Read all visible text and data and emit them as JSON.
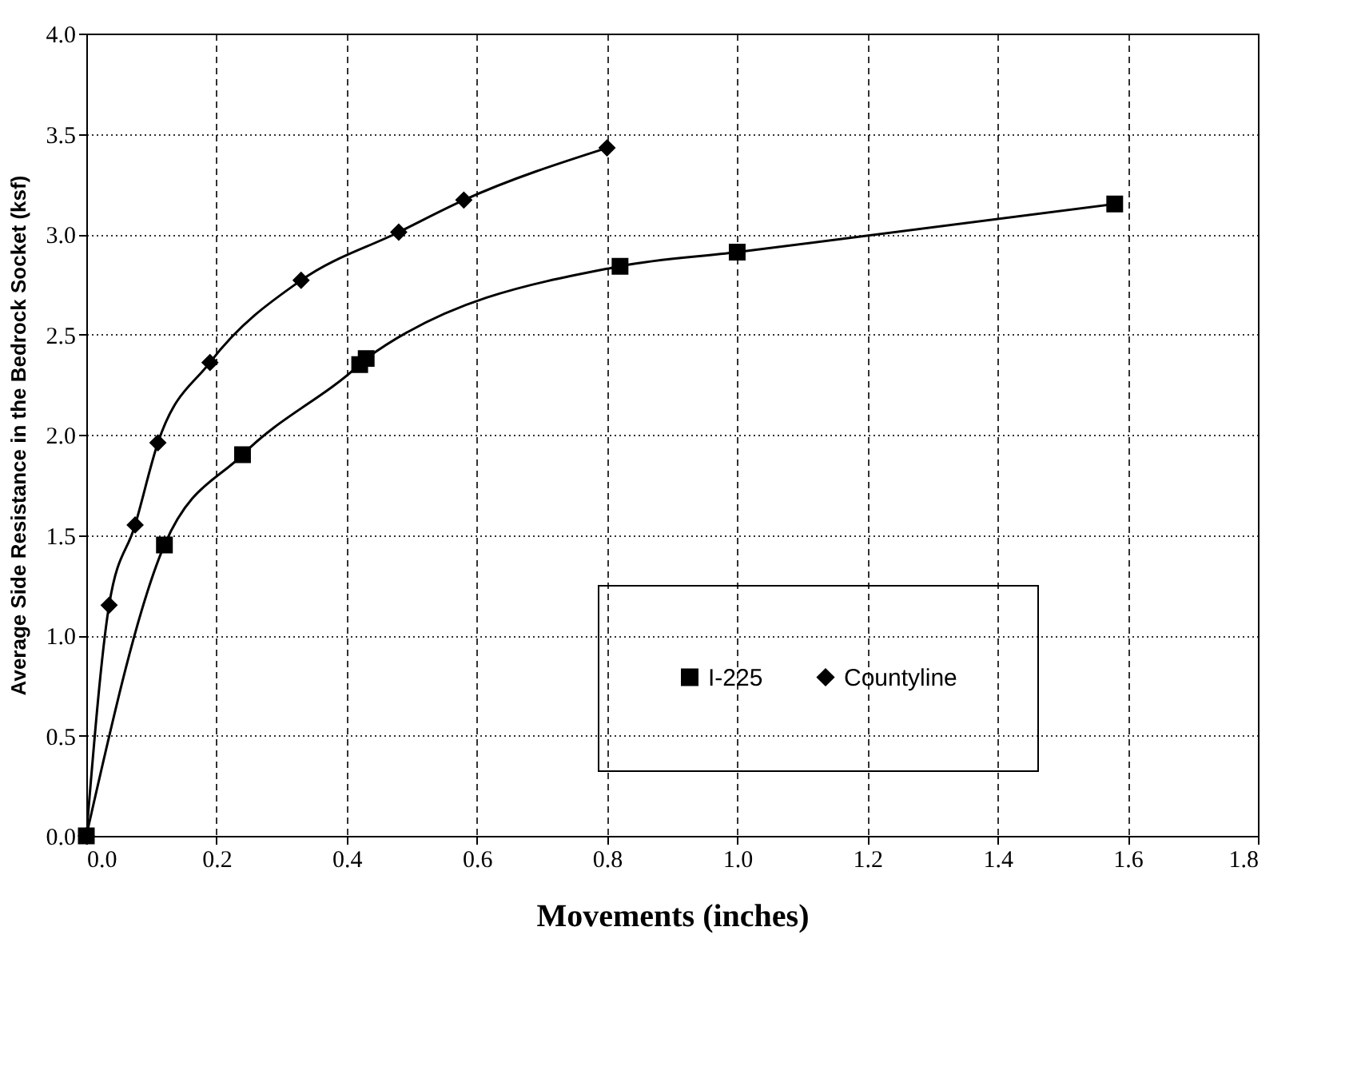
{
  "chart_data": {
    "type": "line",
    "xlabel": "Movements (inches)",
    "ylabel": "Average  Side Resistance in the Bedrock Socket (ksf)",
    "xlim": [
      0,
      1.8
    ],
    "xticks": [
      {
        "value": 0,
        "label": "0.0"
      },
      0.2,
      0.4,
      0.6,
      0.8,
      {
        "value": 1,
        "label": "1.0"
      },
      1.2,
      1.4,
      1.6,
      1.8
    ],
    "ylim": [
      0,
      4
    ],
    "yticks": [
      {
        "value": 0,
        "label": "0.0"
      },
      0.5,
      {
        "value": 1,
        "label": "1.0"
      },
      1.5,
      {
        "value": 2,
        "label": "2.0"
      },
      2.5,
      {
        "value": 3,
        "label": "3.0"
      },
      3.5,
      {
        "value": 4,
        "label": "4.0"
      }
    ],
    "grid": true,
    "legend": "right",
    "line_style": "solid",
    "series": [
      {
        "name": "I-225",
        "color": "#000000",
        "marker": "square",
        "x": [
          0,
          0.12,
          0.24,
          0.42,
          0.43,
          0.82,
          1.0,
          1.58
        ],
        "values": [
          0,
          1.45,
          1.9,
          2.35,
          2.38,
          2.84,
          2.91,
          3.15
        ]
      },
      {
        "name": "Countyline",
        "color": "#000000",
        "marker": "diamond",
        "x": [
          0,
          0.035,
          0.075,
          0.11,
          0.19,
          0.33,
          0.48,
          0.58,
          0.8
        ],
        "values": [
          0,
          1.15,
          1.55,
          1.96,
          2.36,
          2.77,
          3.01,
          3.17,
          3.43
        ]
      }
    ]
  }
}
